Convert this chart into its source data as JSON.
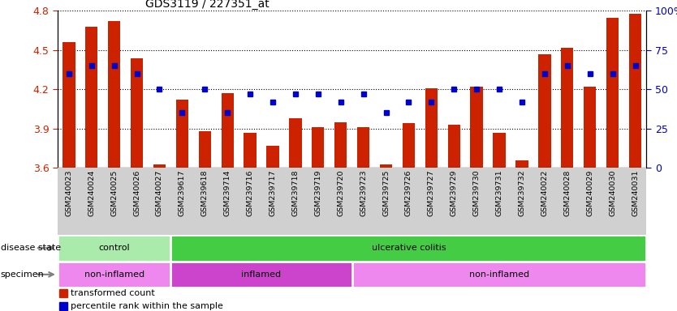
{
  "title": "GDS3119 / 227351_at",
  "samples": [
    "GSM240023",
    "GSM240024",
    "GSM240025",
    "GSM240026",
    "GSM240027",
    "GSM239617",
    "GSM239618",
    "GSM239714",
    "GSM239716",
    "GSM239717",
    "GSM239718",
    "GSM239719",
    "GSM239720",
    "GSM239723",
    "GSM239725",
    "GSM239726",
    "GSM239727",
    "GSM239729",
    "GSM239730",
    "GSM239731",
    "GSM239732",
    "GSM240022",
    "GSM240028",
    "GSM240029",
    "GSM240030",
    "GSM240031"
  ],
  "bar_values": [
    4.56,
    4.68,
    4.72,
    4.44,
    3.63,
    4.12,
    3.88,
    4.17,
    3.87,
    3.77,
    3.98,
    3.91,
    3.95,
    3.91,
    3.63,
    3.94,
    4.21,
    3.93,
    4.22,
    3.87,
    3.66,
    4.47,
    4.52,
    4.22,
    4.75,
    4.78
  ],
  "percentile_values": [
    60,
    65,
    65,
    60,
    50,
    35,
    50,
    35,
    47,
    42,
    47,
    47,
    42,
    47,
    35,
    42,
    42,
    50,
    50,
    50,
    42,
    60,
    65,
    60,
    60,
    65
  ],
  "bar_color": "#cc2200",
  "dot_color": "#0000cc",
  "ylim_left": [
    3.6,
    4.8
  ],
  "yticks_left": [
    3.6,
    3.9,
    4.2,
    4.5,
    4.8
  ],
  "ylim_right": [
    0,
    100
  ],
  "yticks_right": [
    0,
    25,
    50,
    75,
    100
  ],
  "disease_state_groups": [
    {
      "label": "control",
      "start": 0,
      "end": 5,
      "color": "#aaeaaa"
    },
    {
      "label": "ulcerative colitis",
      "start": 5,
      "end": 26,
      "color": "#44cc44"
    }
  ],
  "specimen_groups": [
    {
      "label": "non-inflamed",
      "start": 0,
      "end": 5,
      "color": "#ee88ee"
    },
    {
      "label": "inflamed",
      "start": 5,
      "end": 13,
      "color": "#cc44cc"
    },
    {
      "label": "non-inflamed",
      "start": 13,
      "end": 26,
      "color": "#ee88ee"
    }
  ],
  "legend_bar": "transformed count",
  "legend_dot": "percentile rank within the sample",
  "xtick_bg": "#d0d0d0",
  "plot_bg": "#ffffff",
  "fig_bg": "#ffffff"
}
